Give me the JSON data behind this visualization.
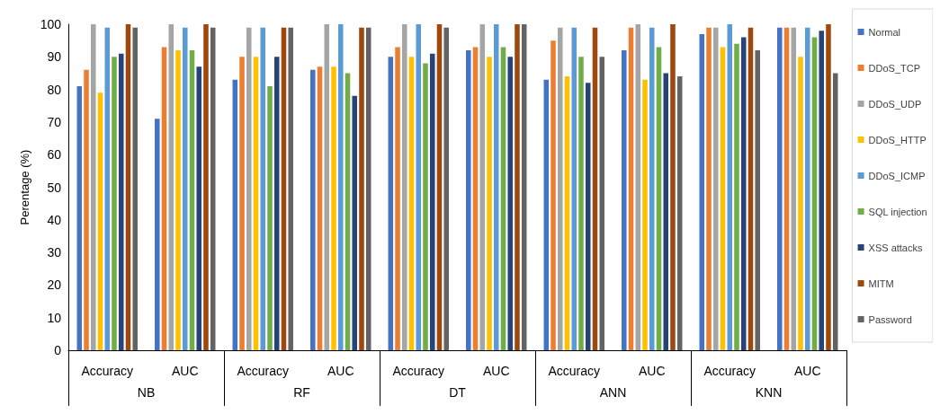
{
  "chart_data": {
    "type": "bar",
    "ylabel": "Perentage (%)",
    "categories": [
      "Accuracy",
      "AUC",
      "Accuracy",
      "AUC",
      "Accuracy",
      "AUC",
      "Accuracy",
      "AUC",
      "Accuracy",
      "AUC"
    ],
    "annotations": [
      "NB",
      "RF",
      "DT",
      "ANN",
      "KNN"
    ],
    "series": [
      {
        "name": "Normal",
        "color": "#4472c4",
        "values": [
          81,
          71,
          83,
          86,
          90,
          92,
          83,
          92,
          97,
          99
        ]
      },
      {
        "name": "DDoS_TCP",
        "color": "#ed7d31",
        "values": [
          86,
          93,
          90,
          87,
          93,
          93,
          95,
          99,
          99,
          99
        ]
      },
      {
        "name": "DDoS_UDP",
        "color": "#a5a5a5",
        "values": [
          100,
          100,
          99,
          100,
          100,
          100,
          99,
          100,
          99,
          99
        ]
      },
      {
        "name": "DDoS_HTTP",
        "color": "#ffc000",
        "values": [
          79,
          92,
          90,
          87,
          90,
          90,
          84,
          83,
          93,
          90
        ]
      },
      {
        "name": "DDoS_ICMP",
        "color": "#5b9bd5",
        "values": [
          99,
          99,
          99,
          100,
          100,
          100,
          99,
          99,
          100,
          99
        ]
      },
      {
        "name": "SQL injection",
        "color": "#70ad47",
        "values": [
          90,
          92,
          81,
          85,
          88,
          93,
          90,
          93,
          94,
          96
        ]
      },
      {
        "name": "XSS attacks",
        "color": "#264478",
        "values": [
          91,
          87,
          90,
          78,
          91,
          90,
          82,
          85,
          96,
          98
        ]
      },
      {
        "name": "MITM",
        "color": "#9e480e",
        "values": [
          100,
          100,
          99,
          99,
          100,
          100,
          99,
          100,
          99,
          100
        ]
      },
      {
        "name": "Password",
        "color": "#636363",
        "values": [
          99,
          99,
          99,
          99,
          99,
          100,
          90,
          84,
          92,
          85
        ]
      }
    ],
    "ylim": [
      0,
      100
    ],
    "yticks": [
      0,
      10,
      20,
      30,
      40,
      50,
      60,
      70,
      80,
      90,
      100
    ],
    "grid": false,
    "legend": "right"
  }
}
